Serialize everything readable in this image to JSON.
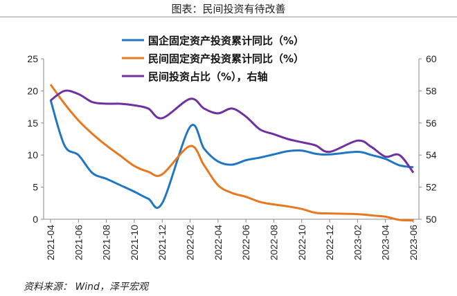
{
  "title": "图表：民间投资有待改善",
  "source": "资料来源： Wind，泽平宏观",
  "chart_data": {
    "type": "line",
    "x": [
      "2021-04",
      "2021-05",
      "2021-06",
      "2021-07",
      "2021-08",
      "2021-09",
      "2021-10",
      "2021-11",
      "2021-12",
      "2022-02",
      "2022-03",
      "2022-04",
      "2022-05",
      "2022-06",
      "2022-07",
      "2022-08",
      "2022-09",
      "2022-10",
      "2022-11",
      "2022-12",
      "2023-02",
      "2023-03",
      "2023-04",
      "2023-05",
      "2023-06"
    ],
    "x_tick_labels": [
      "2021-04",
      "2021-06",
      "2021-08",
      "2021-10",
      "2021-12",
      "2022-02",
      "2022-04",
      "2022-06",
      "2022-08",
      "2022-10",
      "2022-12",
      "2023-02",
      "2023-04",
      "2023-06"
    ],
    "y_left": {
      "range": [
        0,
        25
      ],
      "ticks": [
        "0",
        "5",
        "10",
        "15",
        "20",
        "25"
      ]
    },
    "y_right": {
      "range": [
        50,
        60
      ],
      "ticks": [
        "50",
        "52",
        "54",
        "56",
        "58",
        "60"
      ]
    },
    "legend_position": "top-center",
    "series": [
      {
        "name": "国企固定资产投资累计同比（%）",
        "color": "#1f77c4",
        "axis": "left",
        "values": [
          18.6,
          11.5,
          10.0,
          7.2,
          6.3,
          5.3,
          4.3,
          3.2,
          2.5,
          14.4,
          11.0,
          9.0,
          8.5,
          9.2,
          9.6,
          10.1,
          10.6,
          10.7,
          10.2,
          10.1,
          10.5,
          10.0,
          9.4,
          8.4,
          8.1
        ]
      },
      {
        "name": "民间固定资产投资累计同比（%）",
        "color": "#e8771e",
        "axis": "left",
        "values": [
          21.0,
          18.0,
          15.4,
          13.3,
          11.5,
          9.9,
          8.3,
          7.4,
          7.0,
          11.4,
          8.4,
          5.3,
          4.1,
          3.5,
          2.7,
          2.3,
          2.0,
          1.6,
          1.0,
          0.9,
          0.8,
          0.6,
          0.4,
          -0.1,
          -0.2
        ]
      },
      {
        "name": "民间投资占比（%），右轴",
        "color": "#7030a0",
        "axis": "right",
        "values": [
          57.4,
          58.0,
          57.8,
          57.3,
          57.2,
          57.2,
          57.1,
          56.9,
          56.3,
          57.5,
          56.9,
          56.6,
          56.9,
          56.4,
          55.6,
          55.3,
          55.0,
          54.8,
          54.6,
          54.2,
          54.9,
          54.5,
          53.9,
          54.0,
          52.9
        ]
      }
    ]
  }
}
